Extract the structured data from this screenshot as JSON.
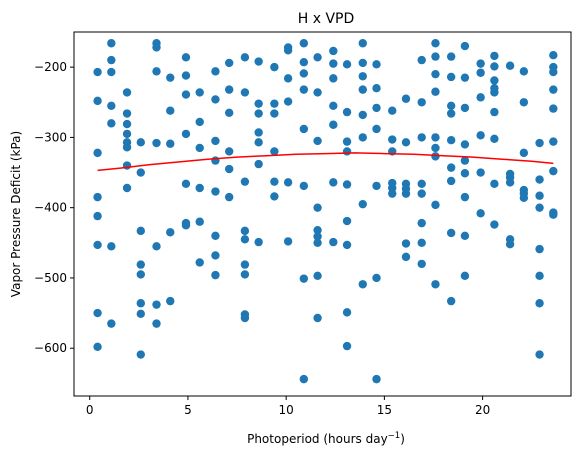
{
  "chart_data": {
    "type": "scatter",
    "title": "H x VPD",
    "xlabel": "Photoperiod (hours day",
    "xlabel_sup": "−1",
    "xlabel_end": ")",
    "ylabel": "Vapor Pressure Deficit (kPa)",
    "xlim": [
      -0.8,
      24.5
    ],
    "ylim": [
      -668,
      -150
    ],
    "xticks": [
      0,
      5,
      10,
      15,
      20
    ],
    "xtick_labels": [
      "0",
      "5",
      "10",
      "15",
      "20"
    ],
    "yticks": [
      -600,
      -500,
      -400,
      -300,
      -200
    ],
    "ytick_labels": [
      "−600",
      "−500",
      "−400",
      "−300",
      "−200"
    ],
    "grid": false,
    "point_color": "#1f77b4",
    "fit_color": "#ff0000",
    "points": [
      [
        0.4,
        -207
      ],
      [
        0.4,
        -248
      ],
      [
        0.4,
        -322
      ],
      [
        0.4,
        -385
      ],
      [
        0.4,
        -412
      ],
      [
        0.4,
        -453
      ],
      [
        0.4,
        -550
      ],
      [
        0.4,
        -598
      ],
      [
        1.1,
        -166
      ],
      [
        1.1,
        -190
      ],
      [
        1.1,
        -207
      ],
      [
        1.1,
        -255
      ],
      [
        1.1,
        -280
      ],
      [
        1.1,
        -455
      ],
      [
        1.1,
        -565
      ],
      [
        1.9,
        -236
      ],
      [
        1.9,
        -266
      ],
      [
        1.9,
        -281
      ],
      [
        1.9,
        -295
      ],
      [
        1.9,
        -307
      ],
      [
        1.9,
        -314
      ],
      [
        1.9,
        -340
      ],
      [
        1.9,
        -372
      ],
      [
        2.6,
        -307
      ],
      [
        2.6,
        -350
      ],
      [
        2.6,
        -433
      ],
      [
        2.6,
        -481
      ],
      [
        2.6,
        -495
      ],
      [
        2.6,
        -536
      ],
      [
        2.6,
        -551
      ],
      [
        2.6,
        -609
      ],
      [
        3.4,
        -166
      ],
      [
        3.4,
        -172
      ],
      [
        3.4,
        -206
      ],
      [
        3.4,
        -308
      ],
      [
        3.4,
        -455
      ],
      [
        3.4,
        -538
      ],
      [
        3.4,
        -565
      ],
      [
        4.1,
        -215
      ],
      [
        4.1,
        -262
      ],
      [
        4.1,
        -309
      ],
      [
        4.1,
        -435
      ],
      [
        4.1,
        -533
      ],
      [
        4.9,
        -186
      ],
      [
        4.9,
        -212
      ],
      [
        4.9,
        -239
      ],
      [
        4.9,
        -295
      ],
      [
        4.9,
        -366
      ],
      [
        4.9,
        -425
      ],
      [
        4.9,
        -422
      ],
      [
        5.6,
        -236
      ],
      [
        5.6,
        -278
      ],
      [
        5.6,
        -315
      ],
      [
        5.6,
        -372
      ],
      [
        5.6,
        -420
      ],
      [
        5.6,
        -478
      ],
      [
        6.4,
        -206
      ],
      [
        6.4,
        -246
      ],
      [
        6.4,
        -305
      ],
      [
        6.4,
        -333
      ],
      [
        6.4,
        -377
      ],
      [
        6.4,
        -440
      ],
      [
        6.4,
        -468
      ],
      [
        6.4,
        -496
      ],
      [
        7.1,
        -194
      ],
      [
        7.1,
        -232
      ],
      [
        7.1,
        -265
      ],
      [
        7.1,
        -320
      ],
      [
        7.1,
        -345
      ],
      [
        7.1,
        -385
      ],
      [
        7.9,
        -186
      ],
      [
        7.9,
        -236
      ],
      [
        7.9,
        -363
      ],
      [
        7.9,
        -433
      ],
      [
        7.9,
        -445
      ],
      [
        7.9,
        -481
      ],
      [
        7.9,
        -495
      ],
      [
        7.9,
        -552
      ],
      [
        7.9,
        -557
      ],
      [
        8.6,
        -192
      ],
      [
        8.6,
        -252
      ],
      [
        8.6,
        -266
      ],
      [
        8.6,
        -293
      ],
      [
        8.6,
        -307
      ],
      [
        8.6,
        -338
      ],
      [
        8.6,
        -449
      ],
      [
        9.4,
        -200
      ],
      [
        9.4,
        -252
      ],
      [
        9.4,
        -266
      ],
      [
        9.4,
        -320
      ],
      [
        9.4,
        -363
      ],
      [
        9.4,
        -384
      ],
      [
        10.1,
        -172
      ],
      [
        10.1,
        -176
      ],
      [
        10.1,
        -216
      ],
      [
        10.1,
        -249
      ],
      [
        10.1,
        -364
      ],
      [
        10.1,
        -448
      ],
      [
        10.9,
        -166
      ],
      [
        10.9,
        -193
      ],
      [
        10.9,
        -209
      ],
      [
        10.9,
        -232
      ],
      [
        10.9,
        -288
      ],
      [
        10.9,
        -369
      ],
      [
        10.9,
        -501
      ],
      [
        10.9,
        -644
      ],
      [
        11.6,
        -186
      ],
      [
        11.6,
        -236
      ],
      [
        11.6,
        -305
      ],
      [
        11.6,
        -400
      ],
      [
        11.6,
        -432
      ],
      [
        11.6,
        -441
      ],
      [
        11.6,
        -450
      ],
      [
        11.6,
        -497
      ],
      [
        11.6,
        -557
      ],
      [
        12.4,
        -177
      ],
      [
        12.4,
        -195
      ],
      [
        12.4,
        -216
      ],
      [
        12.4,
        -255
      ],
      [
        12.4,
        -282
      ],
      [
        12.4,
        -364
      ],
      [
        12.4,
        -449
      ],
      [
        13.1,
        -196
      ],
      [
        13.1,
        -264
      ],
      [
        13.1,
        -306
      ],
      [
        13.1,
        -320
      ],
      [
        13.1,
        -367
      ],
      [
        13.1,
        -419
      ],
      [
        13.1,
        -453
      ],
      [
        13.1,
        -549
      ],
      [
        13.1,
        -597
      ],
      [
        13.9,
        -166
      ],
      [
        13.9,
        -194
      ],
      [
        13.9,
        -213
      ],
      [
        13.9,
        -232
      ],
      [
        13.9,
        -268
      ],
      [
        13.9,
        -300
      ],
      [
        13.9,
        -395
      ],
      [
        13.9,
        -509
      ],
      [
        14.6,
        -196
      ],
      [
        14.6,
        -230
      ],
      [
        14.6,
        -258
      ],
      [
        14.6,
        -288
      ],
      [
        14.6,
        -369
      ],
      [
        14.6,
        -500
      ],
      [
        14.6,
        -644
      ],
      [
        15.4,
        -262
      ],
      [
        15.4,
        -303
      ],
      [
        15.4,
        -320
      ],
      [
        15.4,
        -365
      ],
      [
        15.4,
        -372
      ],
      [
        15.4,
        -380
      ],
      [
        16.1,
        -245
      ],
      [
        16.1,
        -307
      ],
      [
        16.1,
        -366
      ],
      [
        16.1,
        -373
      ],
      [
        16.1,
        -380
      ],
      [
        16.1,
        -451
      ],
      [
        16.1,
        -470
      ],
      [
        16.9,
        -190
      ],
      [
        16.9,
        -250
      ],
      [
        16.9,
        -300
      ],
      [
        16.9,
        -366
      ],
      [
        16.9,
        -380
      ],
      [
        16.9,
        -422
      ],
      [
        16.9,
        -450
      ],
      [
        16.9,
        -480
      ],
      [
        17.6,
        -166
      ],
      [
        17.6,
        -185
      ],
      [
        17.6,
        -210
      ],
      [
        17.6,
        -235
      ],
      [
        17.6,
        -300
      ],
      [
        17.6,
        -315
      ],
      [
        17.6,
        -327
      ],
      [
        17.6,
        -396
      ],
      [
        17.6,
        -509
      ],
      [
        18.4,
        -185
      ],
      [
        18.4,
        -214
      ],
      [
        18.4,
        -255
      ],
      [
        18.4,
        -266
      ],
      [
        18.4,
        -304
      ],
      [
        18.4,
        -343
      ],
      [
        18.4,
        -362
      ],
      [
        18.4,
        -436
      ],
      [
        18.4,
        -533
      ],
      [
        19.1,
        -170
      ],
      [
        19.1,
        -215
      ],
      [
        19.1,
        -258
      ],
      [
        19.1,
        -310
      ],
      [
        19.1,
        -333
      ],
      [
        19.1,
        -351
      ],
      [
        19.1,
        -385
      ],
      [
        19.1,
        -440
      ],
      [
        19.1,
        -497
      ],
      [
        19.9,
        -195
      ],
      [
        19.9,
        -208
      ],
      [
        19.9,
        -243
      ],
      [
        19.9,
        -297
      ],
      [
        19.9,
        -350
      ],
      [
        19.9,
        -408
      ],
      [
        20.6,
        -184
      ],
      [
        20.6,
        -199
      ],
      [
        20.6,
        -219
      ],
      [
        20.6,
        -230
      ],
      [
        20.6,
        -236
      ],
      [
        20.6,
        -264
      ],
      [
        20.6,
        -302
      ],
      [
        20.6,
        -366
      ],
      [
        20.6,
        -424
      ],
      [
        21.4,
        -198
      ],
      [
        21.4,
        -352
      ],
      [
        21.4,
        -357
      ],
      [
        21.4,
        -364
      ],
      [
        21.4,
        -445
      ],
      [
        21.4,
        -452
      ],
      [
        22.1,
        -206
      ],
      [
        22.1,
        -250
      ],
      [
        22.1,
        -322
      ],
      [
        22.1,
        -375
      ],
      [
        22.1,
        -380
      ],
      [
        22.1,
        -386
      ],
      [
        22.9,
        -308
      ],
      [
        22.9,
        -360
      ],
      [
        22.9,
        -383
      ],
      [
        22.9,
        -400
      ],
      [
        22.9,
        -459
      ],
      [
        22.9,
        -497
      ],
      [
        22.9,
        -536
      ],
      [
        22.9,
        -609
      ],
      [
        23.6,
        -183
      ],
      [
        23.6,
        -200
      ],
      [
        23.6,
        -207
      ],
      [
        23.6,
        -232
      ],
      [
        23.6,
        -259
      ],
      [
        23.6,
        -306
      ],
      [
        23.6,
        -348
      ],
      [
        23.6,
        -407
      ],
      [
        23.6,
        -410
      ]
    ],
    "fit_line": [
      [
        0.4,
        -347
      ],
      [
        1.5,
        -344
      ],
      [
        3,
        -339
      ],
      [
        4.5,
        -335
      ],
      [
        6,
        -331
      ],
      [
        7.5,
        -328
      ],
      [
        9,
        -326
      ],
      [
        10.5,
        -324
      ],
      [
        12,
        -323
      ],
      [
        13.5,
        -322
      ],
      [
        15,
        -323
      ],
      [
        16.5,
        -324
      ],
      [
        18,
        -326
      ],
      [
        19.5,
        -328
      ],
      [
        21,
        -331
      ],
      [
        22.5,
        -334
      ],
      [
        23.6,
        -337
      ]
    ]
  }
}
